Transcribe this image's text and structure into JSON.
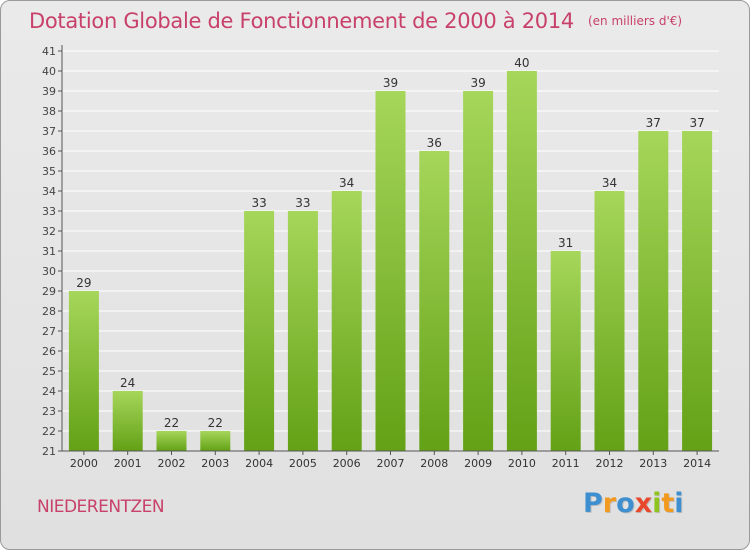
{
  "colors": {
    "title": "#c8416b",
    "bar_light": "#a6d65a",
    "bar_dark": "#63a116",
    "axis": "#555555",
    "grid": "#ffffff"
  },
  "chart_data": {
    "type": "bar",
    "title": "Dotation Globale de Fonctionnement de 2000 à 2014",
    "unit_label": "(en milliers d'€)",
    "categories": [
      "2000",
      "2001",
      "2002",
      "2003",
      "2004",
      "2005",
      "2006",
      "2007",
      "2008",
      "2009",
      "2010",
      "2011",
      "2012",
      "2013",
      "2014"
    ],
    "values": [
      29,
      24,
      22,
      22,
      33,
      33,
      34,
      39,
      36,
      39,
      40,
      31,
      34,
      37,
      37
    ],
    "ylim": [
      21,
      41
    ],
    "yticks": [
      21,
      22,
      23,
      24,
      25,
      26,
      27,
      28,
      29,
      30,
      31,
      32,
      33,
      34,
      35,
      36,
      37,
      38,
      39,
      40,
      41
    ],
    "xlabel": "",
    "ylabel": "",
    "grid": true
  },
  "footer": {
    "commune": "NIEDERENTZEN",
    "logo": {
      "letters": [
        "P",
        "r",
        "o",
        "x",
        "i",
        "t",
        "i"
      ],
      "colors": [
        "#3d8fd0",
        "#f29a1f",
        "#3d8fd0",
        "#e8482b",
        "#8fc31f",
        "#f29a1f",
        "#3d8fd0"
      ]
    }
  }
}
